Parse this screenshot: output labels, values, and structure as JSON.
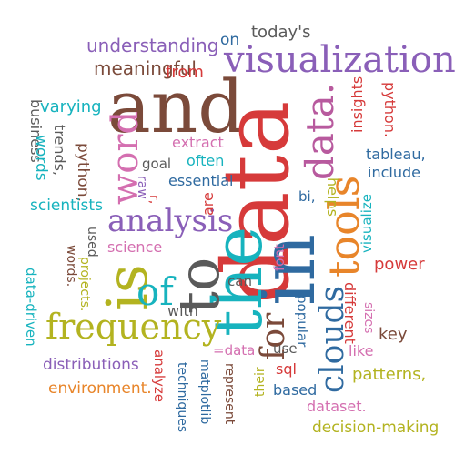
{
  "words": [
    {
      "text": "and",
      "color": "#7b4a3a"
    },
    {
      "text": "data",
      "color": "#d63a3a"
    },
    {
      "text": "visualization",
      "color": "#8a5fb8"
    },
    {
      "text": "data.",
      "color": "#b85a9e"
    },
    {
      "text": "in",
      "color": "#2f6aa0"
    },
    {
      "text": "the",
      "color": "#17b3be"
    },
    {
      "text": "to",
      "color": "#5a5a5a"
    },
    {
      "text": "is",
      "color": "#b3b320"
    },
    {
      "text": "tools",
      "color": "#e8852a"
    },
    {
      "text": "analysis",
      "color": "#8a5fb8"
    },
    {
      "text": "word",
      "color": "#d46fb0"
    },
    {
      "text": "of",
      "color": "#17b3be"
    },
    {
      "text": "frequency",
      "color": "#b3b320"
    },
    {
      "text": "clouds",
      "color": "#2f6aa0"
    },
    {
      "text": "for",
      "color": "#7b4a3a"
    },
    {
      "text": "understanding",
      "color": "#8a5fb8"
    },
    {
      "text": "meaningful",
      "color": "#7b4a3a"
    },
    {
      "text": "from",
      "color": "#d63a3a"
    },
    {
      "text": "on",
      "color": "#2f6aa0"
    },
    {
      "text": "today's",
      "color": "#5a5a5a"
    },
    {
      "text": "business",
      "color": "#5a5a5a"
    },
    {
      "text": "varying",
      "color": "#17b3be"
    },
    {
      "text": "trends,",
      "color": "#5a5a5a"
    },
    {
      "text": "python,",
      "color": "#7b4a3a"
    },
    {
      "text": "words",
      "color": "#17b3be"
    },
    {
      "text": "scientists",
      "color": "#17b3be"
    },
    {
      "text": "extract",
      "color": "#d46fb0"
    },
    {
      "text": "often",
      "color": "#17b3be"
    },
    {
      "text": "goal",
      "color": "#5a5a5a"
    },
    {
      "text": "essential",
      "color": "#2f6aa0"
    },
    {
      "text": "raw",
      "color": "#8a5fb8"
    },
    {
      "text": "r,",
      "color": "#d63a3a"
    },
    {
      "text": "are",
      "color": "#d63a3a"
    },
    {
      "text": "bi,",
      "color": "#2f6aa0"
    },
    {
      "text": "helps",
      "color": "#b3b320"
    },
    {
      "text": "insights",
      "color": "#d63a3a"
    },
    {
      "text": "python.",
      "color": "#d63a3a"
    },
    {
      "text": "tableau,",
      "color": "#2f6aa0"
    },
    {
      "text": "include",
      "color": "#2f6aa0"
    },
    {
      "text": "visualize",
      "color": "#17b3be"
    },
    {
      "text": "used",
      "color": "#5a5a5a"
    },
    {
      "text": "science",
      "color": "#d46fb0"
    },
    {
      "text": "words.",
      "color": "#7b4a3a"
    },
    {
      "text": "projects.",
      "color": "#b3b320"
    },
    {
      "text": "data-driven",
      "color": "#17b3be"
    },
    {
      "text": "font",
      "color": "#d46fb0"
    },
    {
      "text": "can",
      "color": "#5a5a5a"
    },
    {
      "text": "popular",
      "color": "#2f6aa0"
    },
    {
      "text": "different",
      "color": "#d63a3a"
    },
    {
      "text": "power",
      "color": "#d63a3a"
    },
    {
      "text": "sizes",
      "color": "#d46fb0"
    },
    {
      "text": "key",
      "color": "#7b4a3a"
    },
    {
      "text": "with",
      "color": "#5a5a5a"
    },
    {
      "text": "like",
      "color": "#d46fb0"
    },
    {
      "text": "distributions",
      "color": "#8a5fb8"
    },
    {
      "text": "analyze",
      "color": "#d63a3a"
    },
    {
      "text": "=data",
      "color": "#d46fb0"
    },
    {
      "text": "use",
      "color": "#5a5a5a"
    },
    {
      "text": "sql",
      "color": "#d63a3a"
    },
    {
      "text": "patterns,",
      "color": "#b3b320"
    },
    {
      "text": "environment.",
      "color": "#e8852a"
    },
    {
      "text": "techniques",
      "color": "#2f6aa0"
    },
    {
      "text": "matplotlib",
      "color": "#2f6aa0"
    },
    {
      "text": "represent",
      "color": "#7b4a3a"
    },
    {
      "text": "their",
      "color": "#b3b320"
    },
    {
      "text": "based",
      "color": "#2f6aa0"
    },
    {
      "text": "dataset.",
      "color": "#d46fb0"
    },
    {
      "text": "decision-making",
      "color": "#b3b320"
    }
  ]
}
